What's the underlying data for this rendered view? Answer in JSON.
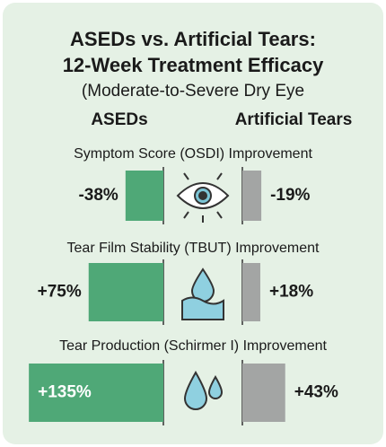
{
  "chart_data": {
    "type": "butterfly",
    "title": "ASEDs vs. Artificial Tears:",
    "subtitle": "12-Week Treatment Efficacy",
    "note": "(Moderate-to-Severe Dry Eye",
    "categories": [
      "Symptom Score (OSDI) Improvement",
      "Tear Film Stability (TBUT) Improvement",
      "Tear Production (Schirmer I) Improvement"
    ],
    "series": [
      {
        "name": "ASEDs",
        "color": "#4fa877",
        "values": [
          -38,
          75,
          135
        ],
        "value_labels": [
          "-38%",
          "+75%",
          "+135%"
        ]
      },
      {
        "name": "Artificial Tears",
        "color": "#a3a5a4",
        "values": [
          -19,
          18,
          43
        ],
        "value_labels": [
          "-19%",
          "+18%",
          "+43%"
        ]
      }
    ]
  }
}
